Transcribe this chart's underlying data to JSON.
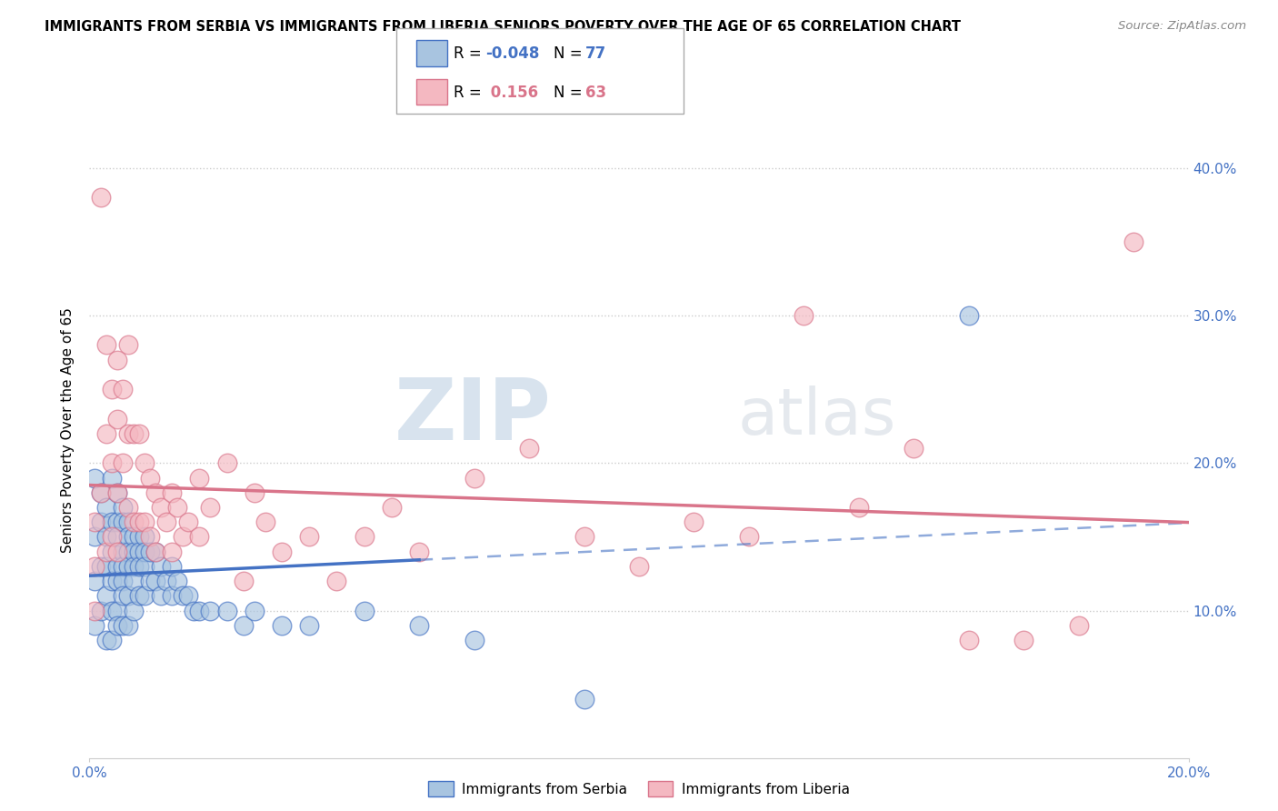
{
  "title": "IMMIGRANTS FROM SERBIA VS IMMIGRANTS FROM LIBERIA SENIORS POVERTY OVER THE AGE OF 65 CORRELATION CHART",
  "source": "Source: ZipAtlas.com",
  "ylabel": "Seniors Poverty Over the Age of 65",
  "legend_label1": "Immigrants from Serbia",
  "legend_label2": "Immigrants from Liberia",
  "R1": -0.048,
  "N1": 77,
  "R2": 0.156,
  "N2": 63,
  "color_serbia": "#a8c4e0",
  "color_liberia": "#f4b8c1",
  "color_serbia_line": "#4472c4",
  "color_liberia_line": "#d9748a",
  "ytick_labels": [
    "10.0%",
    "20.0%",
    "30.0%",
    "40.0%"
  ],
  "ytick_values": [
    0.1,
    0.2,
    0.3,
    0.4
  ],
  "xlim": [
    0.0,
    0.2
  ],
  "ylim": [
    0.0,
    0.445
  ],
  "serbia_x": [
    0.001,
    0.001,
    0.001,
    0.001,
    0.002,
    0.002,
    0.002,
    0.002,
    0.003,
    0.003,
    0.003,
    0.003,
    0.003,
    0.004,
    0.004,
    0.004,
    0.004,
    0.004,
    0.004,
    0.005,
    0.005,
    0.005,
    0.005,
    0.005,
    0.005,
    0.005,
    0.006,
    0.006,
    0.006,
    0.006,
    0.006,
    0.006,
    0.006,
    0.007,
    0.007,
    0.007,
    0.007,
    0.007,
    0.007,
    0.008,
    0.008,
    0.008,
    0.008,
    0.008,
    0.009,
    0.009,
    0.009,
    0.009,
    0.01,
    0.01,
    0.01,
    0.01,
    0.011,
    0.011,
    0.012,
    0.012,
    0.013,
    0.013,
    0.014,
    0.015,
    0.015,
    0.016,
    0.017,
    0.018,
    0.019,
    0.02,
    0.022,
    0.025,
    0.028,
    0.03,
    0.035,
    0.04,
    0.05,
    0.06,
    0.07,
    0.09,
    0.16
  ],
  "serbia_y": [
    0.19,
    0.15,
    0.12,
    0.09,
    0.18,
    0.16,
    0.13,
    0.1,
    0.17,
    0.15,
    0.13,
    0.11,
    0.08,
    0.19,
    0.16,
    0.14,
    0.12,
    0.1,
    0.08,
    0.18,
    0.16,
    0.15,
    0.13,
    0.12,
    0.1,
    0.09,
    0.17,
    0.16,
    0.14,
    0.13,
    0.12,
    0.11,
    0.09,
    0.16,
    0.15,
    0.14,
    0.13,
    0.11,
    0.09,
    0.15,
    0.14,
    0.13,
    0.12,
    0.1,
    0.15,
    0.14,
    0.13,
    0.11,
    0.15,
    0.14,
    0.13,
    0.11,
    0.14,
    0.12,
    0.14,
    0.12,
    0.13,
    0.11,
    0.12,
    0.13,
    0.11,
    0.12,
    0.11,
    0.11,
    0.1,
    0.1,
    0.1,
    0.1,
    0.09,
    0.1,
    0.09,
    0.09,
    0.1,
    0.09,
    0.08,
    0.04,
    0.3
  ],
  "liberia_x": [
    0.001,
    0.001,
    0.001,
    0.002,
    0.002,
    0.003,
    0.003,
    0.003,
    0.004,
    0.004,
    0.004,
    0.005,
    0.005,
    0.005,
    0.005,
    0.006,
    0.006,
    0.007,
    0.007,
    0.007,
    0.008,
    0.008,
    0.009,
    0.009,
    0.01,
    0.01,
    0.011,
    0.011,
    0.012,
    0.012,
    0.013,
    0.014,
    0.015,
    0.015,
    0.016,
    0.017,
    0.018,
    0.02,
    0.02,
    0.022,
    0.025,
    0.028,
    0.03,
    0.032,
    0.035,
    0.04,
    0.045,
    0.05,
    0.055,
    0.06,
    0.07,
    0.08,
    0.09,
    0.1,
    0.11,
    0.12,
    0.13,
    0.14,
    0.15,
    0.16,
    0.17,
    0.18,
    0.19
  ],
  "liberia_y": [
    0.16,
    0.13,
    0.1,
    0.38,
    0.18,
    0.28,
    0.22,
    0.14,
    0.25,
    0.2,
    0.15,
    0.27,
    0.23,
    0.18,
    0.14,
    0.25,
    0.2,
    0.28,
    0.22,
    0.17,
    0.22,
    0.16,
    0.22,
    0.16,
    0.2,
    0.16,
    0.19,
    0.15,
    0.18,
    0.14,
    0.17,
    0.16,
    0.18,
    0.14,
    0.17,
    0.15,
    0.16,
    0.19,
    0.15,
    0.17,
    0.2,
    0.12,
    0.18,
    0.16,
    0.14,
    0.15,
    0.12,
    0.15,
    0.17,
    0.14,
    0.19,
    0.21,
    0.15,
    0.13,
    0.16,
    0.15,
    0.3,
    0.17,
    0.21,
    0.08,
    0.08,
    0.09,
    0.35
  ],
  "watermark_zip": "ZIP",
  "watermark_atlas": "atlas",
  "background_color": "#ffffff",
  "grid_color": "#cccccc"
}
